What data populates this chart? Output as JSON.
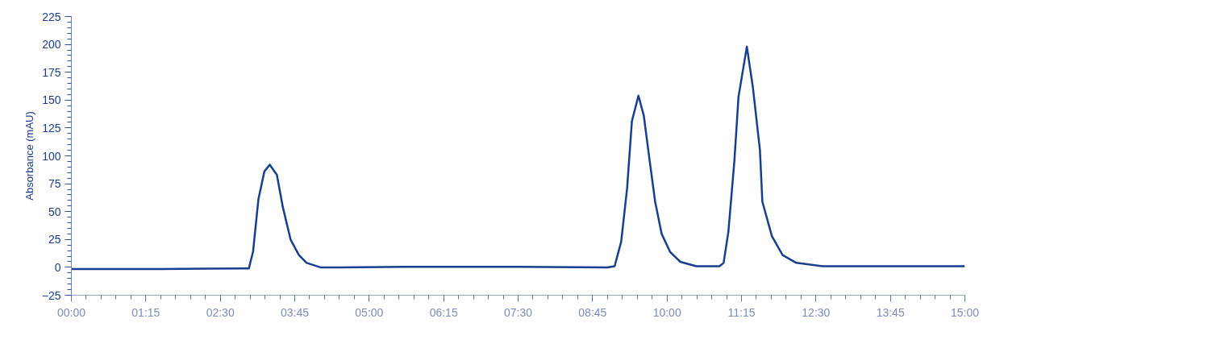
{
  "chart_data": {
    "type": "line",
    "ylabel": "Absorbance (mAU)",
    "series": [
      {
        "color": "#173f8f",
        "x": [
          0,
          1.5,
          2.9,
          2.98,
          3.05,
          3.14,
          3.24,
          3.33,
          3.45,
          3.55,
          3.68,
          3.82,
          3.95,
          4.18,
          4.5,
          5.6,
          7.5,
          9.0,
          9.12,
          9.23,
          9.33,
          9.41,
          9.52,
          9.61,
          9.71,
          9.8,
          9.91,
          10.05,
          10.22,
          10.49,
          10.88,
          10.95,
          11.03,
          11.13,
          11.2,
          11.34,
          11.44,
          11.56,
          11.6,
          11.76,
          11.94,
          12.17,
          12.62,
          13.5,
          15
        ],
        "values": [
          -1.5,
          -1.5,
          -1,
          -1,
          14,
          61,
          86,
          92,
          83,
          54,
          25,
          11,
          4,
          0,
          0,
          0.5,
          0.5,
          0,
          1,
          23,
          71,
          131,
          154,
          136,
          95,
          59,
          30,
          14,
          5,
          1,
          1,
          4,
          32,
          95,
          153,
          198,
          162,
          105,
          59,
          28,
          11,
          4,
          1,
          1,
          1
        ]
      }
    ],
    "xlim": [
      0,
      15
    ],
    "xticks": [
      {
        "value": 0,
        "label": "00:00"
      },
      {
        "value": 1.25,
        "label": "01:15"
      },
      {
        "value": 2.5,
        "label": "02:30"
      },
      {
        "value": 3.75,
        "label": "03:45"
      },
      {
        "value": 5,
        "label": "05:00"
      },
      {
        "value": 6.25,
        "label": "06:15"
      },
      {
        "value": 7.5,
        "label": "07:30"
      },
      {
        "value": 8.75,
        "label": "08:45"
      },
      {
        "value": 10,
        "label": "10:00"
      },
      {
        "value": 11.25,
        "label": "11:15"
      },
      {
        "value": 12.5,
        "label": "12:30"
      },
      {
        "value": 13.75,
        "label": "13:45"
      },
      {
        "value": 15,
        "label": "15:00"
      }
    ],
    "ylim": [
      -25,
      225
    ],
    "yticks": [
      -25,
      0,
      25,
      50,
      75,
      100,
      125,
      150,
      175,
      200,
      225
    ],
    "grid": false,
    "marker": "none",
    "line_style": "solid"
  }
}
